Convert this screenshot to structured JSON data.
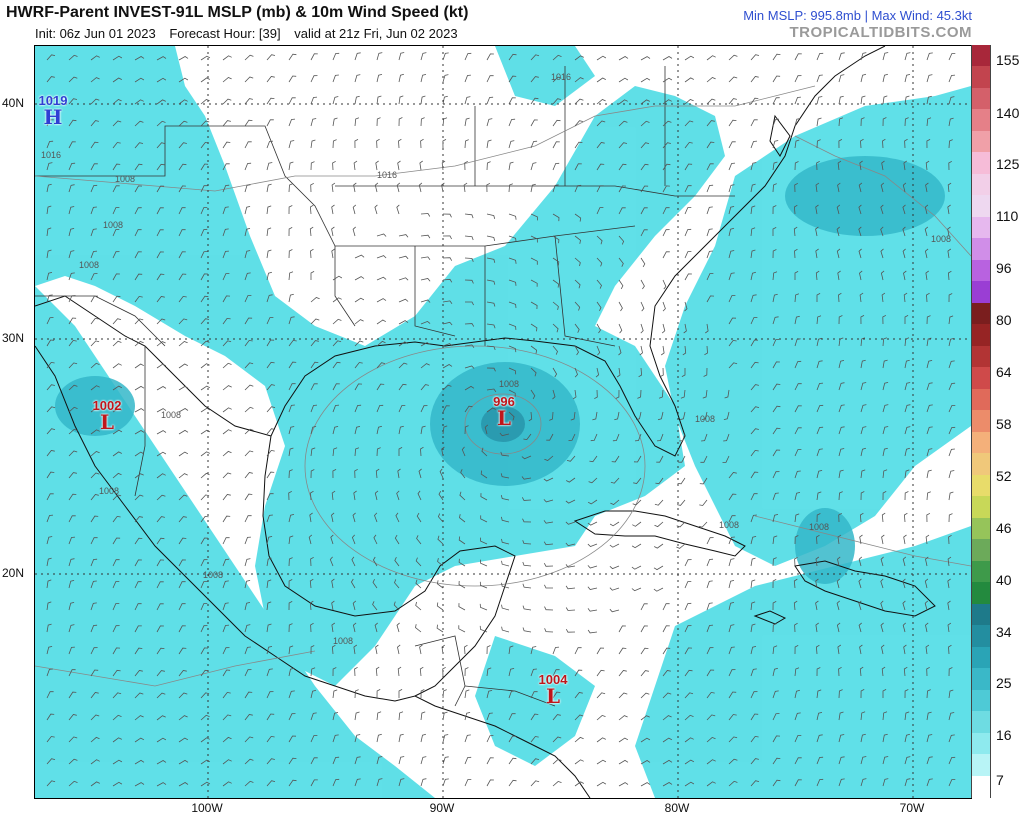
{
  "header": {
    "title": "HWRF-Parent INVEST-91L MSLP (mb) & 10m Wind Speed (kt)",
    "init": "Init: 06z Jun 01 2023",
    "forecast_hour": "Forecast Hour: [39]",
    "valid": "valid at 21z Fri, Jun 02 2023",
    "stats": "Min MSLP: 995.8mb | Max Wind: 45.3kt",
    "credit": "TROPICALTIDBITS.COM"
  },
  "axes": {
    "lat_labels": [
      "40N",
      "30N",
      "20N"
    ],
    "lon_labels": [
      "100W",
      "90W",
      "80W",
      "70W"
    ]
  },
  "pressure_centers": [
    {
      "type": "high",
      "value": "1019",
      "symbol": "H"
    },
    {
      "type": "low",
      "value": "1002",
      "symbol": "L"
    },
    {
      "type": "low",
      "value": "996",
      "symbol": "L"
    },
    {
      "type": "low",
      "value": "1004",
      "symbol": "L"
    }
  ],
  "isobar_labels": [
    "1016",
    "1016",
    "1016",
    "1008",
    "1008",
    "1008",
    "1008",
    "1008",
    "1008",
    "1008",
    "1008",
    "1008",
    "1008",
    "1008",
    "1008"
  ],
  "colorbar": {
    "labels": [
      "155",
      "140",
      "125",
      "110",
      "96",
      "80",
      "64",
      "58",
      "52",
      "46",
      "40",
      "34",
      "25",
      "16",
      "7"
    ],
    "colors": [
      "#a8273a",
      "#c2444e",
      "#d4606a",
      "#e58088",
      "#f0a0a8",
      "#f6bcd8",
      "#f2cfe8",
      "#eed8f0",
      "#e6b8ee",
      "#d08ee8",
      "#b862e0",
      "#9a3ed4",
      "#7a1e1e",
      "#962424",
      "#b23434",
      "#cf4a4a",
      "#e06a5a",
      "#ec8c6a",
      "#f4b07a",
      "#f0c87a",
      "#e8dc6a",
      "#c8d858",
      "#96c45a",
      "#6caa5a",
      "#3e9a4a",
      "#238a3e",
      "#1e7a8a",
      "#238ea0",
      "#2aa4b6",
      "#3ab8c8",
      "#4ecad6",
      "#6edce2",
      "#8eeaee",
      "#b8f4f6",
      "#ffffff"
    ]
  }
}
